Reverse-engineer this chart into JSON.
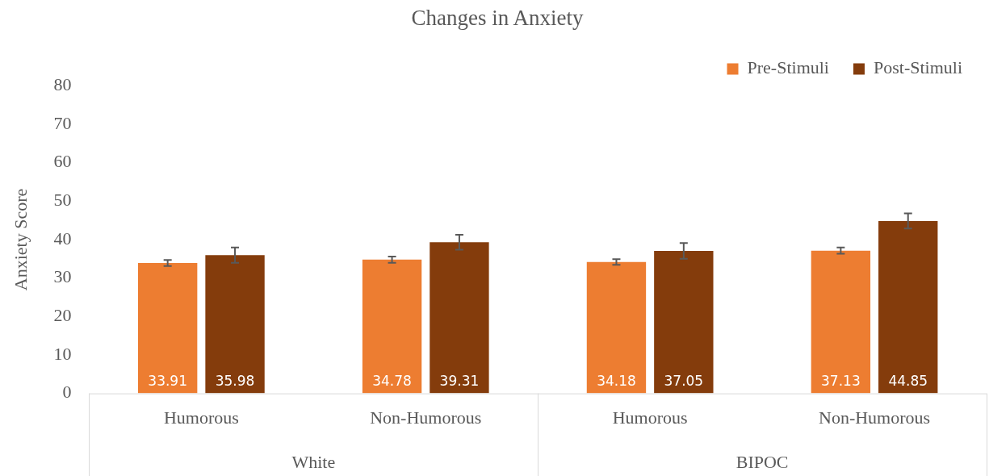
{
  "chart_data": {
    "type": "bar",
    "title": "Changes in Anxiety",
    "ylabel": "Anxiety Score",
    "categories": [
      "Humorous",
      "Non-Humorous",
      "Humorous",
      "Non-Humorous"
    ],
    "series": [
      {
        "name": "Pre-Stimuli",
        "color": "#ed7d31",
        "values": [
          33.91,
          34.78,
          34.18,
          37.13
        ],
        "errors": [
          0.8,
          0.8,
          0.75,
          0.8
        ]
      },
      {
        "name": "Post-Stimuli",
        "color": "#843c0c",
        "values": [
          35.98,
          39.31,
          37.05,
          44.85
        ],
        "errors": [
          2.0,
          1.95,
          2.05,
          1.95
        ]
      }
    ],
    "annotations": [
      "White",
      "BIPOC"
    ],
    "ylim": [
      0,
      80
    ],
    "yticks": [
      0,
      10,
      20,
      30,
      40,
      50,
      60,
      70,
      80
    ],
    "data_labels": true,
    "grid": false,
    "legend": "top right"
  }
}
